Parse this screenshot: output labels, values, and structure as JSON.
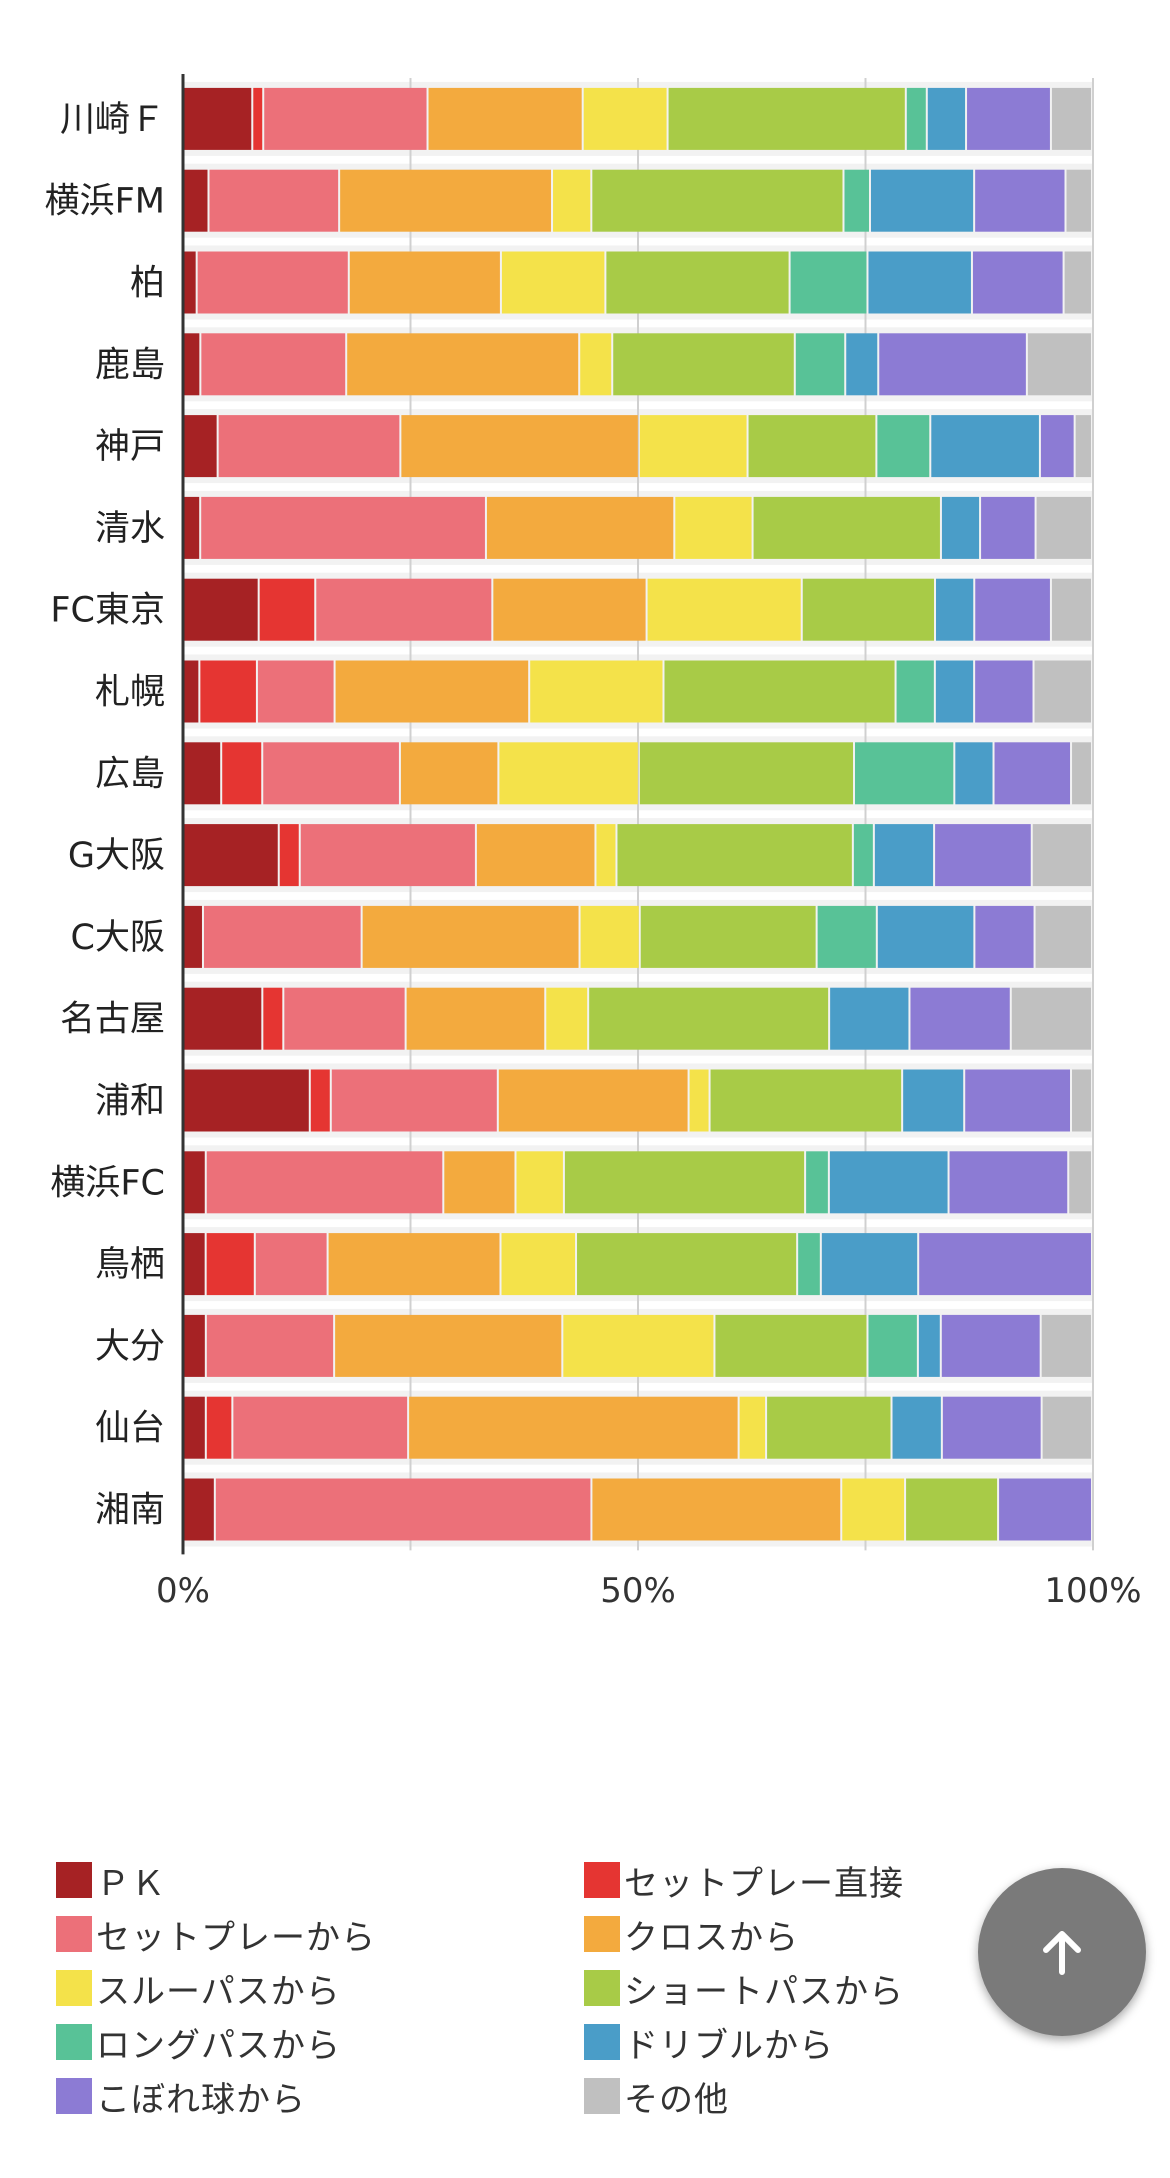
{
  "chart_data": {
    "type": "bar",
    "orientation": "horizontal",
    "stacked": "percent",
    "title": "",
    "xlabel": "",
    "ylabel": "",
    "xlim": [
      0,
      100
    ],
    "x_ticks": [
      "0%",
      "50%",
      "100%"
    ],
    "grid": true,
    "legend_position": "bottom",
    "categories": [
      "川崎Ｆ",
      "横浜FM",
      "柏",
      "鹿島",
      "神戸",
      "清水",
      "FC東京",
      "札幌",
      "広島",
      "G大阪",
      "C大阪",
      "名古屋",
      "浦和",
      "横浜FC",
      "鳥栖",
      "大分",
      "仙台",
      "湘南"
    ],
    "series": [
      {
        "name": "ＰＫ",
        "color": "#a62224",
        "values": [
          7.7,
          2.9,
          1.6,
          2.0,
          3.9,
          2.0,
          8.4,
          1.9,
          4.3,
          10.6,
          2.3,
          8.8,
          14.0,
          2.6,
          2.6,
          2.6,
          2.6,
          3.6
        ]
      },
      {
        "name": "セットプレー直接",
        "color": "#e53532",
        "values": [
          1.2,
          0,
          0,
          0,
          0,
          0,
          6.2,
          6.3,
          4.5,
          2.3,
          0,
          2.3,
          2.3,
          0,
          5.4,
          0,
          2.9,
          0
        ]
      },
      {
        "name": "セットプレーから",
        "color": "#ec7079",
        "values": [
          18.0,
          14.3,
          16.6,
          15.9,
          20.0,
          31.4,
          19.4,
          8.5,
          15.1,
          19.3,
          17.4,
          13.4,
          18.3,
          26.0,
          8.0,
          14.0,
          19.2,
          41.3
        ]
      },
      {
        "name": "クロスから",
        "color": "#f3aa3e",
        "values": [
          17.0,
          23.3,
          16.6,
          25.4,
          26.1,
          20.7,
          16.9,
          21.3,
          10.8,
          13.1,
          23.9,
          15.3,
          20.9,
          7.9,
          19.0,
          24.9,
          36.1,
          27.4
        ]
      },
      {
        "name": "スルーパスから",
        "color": "#f4e24a",
        "values": [
          9.3,
          4.3,
          11.4,
          3.6,
          11.9,
          8.6,
          17.0,
          14.7,
          15.4,
          2.3,
          6.6,
          4.7,
          2.3,
          5.3,
          8.3,
          16.6,
          3.0,
          7.0
        ]
      },
      {
        "name": "ショートパスから",
        "color": "#a8cb47",
        "values": [
          26.1,
          27.6,
          20.1,
          19.9,
          14.1,
          20.7,
          14.6,
          25.4,
          23.6,
          25.9,
          19.4,
          26.4,
          21.1,
          26.4,
          24.3,
          16.7,
          13.7,
          10.2
        ]
      },
      {
        "name": "ロングパスから",
        "color": "#58c297",
        "values": [
          2.3,
          2.9,
          8.5,
          5.5,
          5.9,
          0,
          0,
          4.3,
          11.0,
          2.3,
          6.6,
          0,
          0,
          2.6,
          2.6,
          5.5,
          0,
          0
        ]
      },
      {
        "name": "ドリブルから",
        "color": "#4a9dc8",
        "values": [
          4.3,
          11.4,
          11.4,
          3.6,
          12.0,
          4.3,
          4.3,
          4.3,
          4.3,
          6.6,
          10.7,
          8.8,
          6.8,
          13.1,
          10.7,
          2.5,
          5.5,
          0
        ]
      },
      {
        "name": "こぼれ球から",
        "color": "#8c7bd4",
        "values": [
          9.3,
          10.0,
          10.0,
          16.2,
          3.8,
          6.1,
          8.4,
          6.5,
          8.5,
          10.7,
          6.6,
          11.1,
          11.7,
          13.1,
          19.1,
          10.9,
          10.9,
          10.3
        ]
      },
      {
        "name": "その他",
        "color": "#c0c0c0",
        "values": [
          4.5,
          2.9,
          3.1,
          7.1,
          1.9,
          6.2,
          4.5,
          6.4,
          2.3,
          6.6,
          6.3,
          8.9,
          2.3,
          2.6,
          0,
          5.6,
          5.5,
          0
        ]
      }
    ]
  },
  "scroll_top": {
    "icon": "arrow-up-icon"
  }
}
